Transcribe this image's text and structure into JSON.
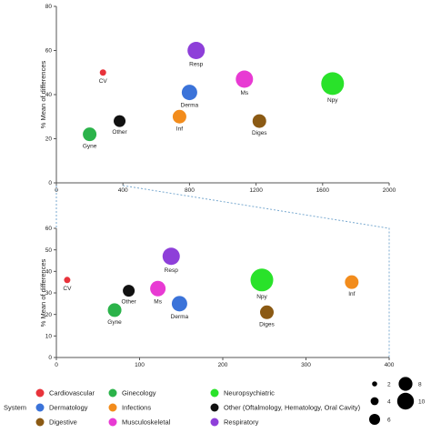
{
  "chart_data": [
    {
      "type": "scatter",
      "ylabel": "% Mean of differences",
      "xlim": [
        0,
        2000
      ],
      "ylim": [
        0,
        80
      ],
      "xticks": [
        "0",
        "400",
        "800",
        "1200",
        "1600",
        "2000"
      ],
      "yticks": [
        "0",
        "20",
        "40",
        "60",
        "80"
      ],
      "grid": false,
      "points": [
        {
          "label": "CV",
          "system": "Cardiovascular",
          "x": 280,
          "y": 50,
          "size": 1
        },
        {
          "label": "Gyne",
          "system": "Ginecology",
          "x": 200,
          "y": 22,
          "size": 5
        },
        {
          "label": "Other",
          "system": "Other",
          "x": 380,
          "y": 28,
          "size": 4
        },
        {
          "label": "Derma",
          "system": "Dermatology",
          "x": 800,
          "y": 41,
          "size": 6
        },
        {
          "label": "Inf",
          "system": "Infections",
          "x": 740,
          "y": 30,
          "size": 5
        },
        {
          "label": "Resp",
          "system": "Respiratory",
          "x": 840,
          "y": 60,
          "size": 7
        },
        {
          "label": "Ms",
          "system": "Musculoskeletal",
          "x": 1130,
          "y": 47,
          "size": 7
        },
        {
          "label": "Diges",
          "system": "Digestive",
          "x": 1220,
          "y": 28,
          "size": 5
        },
        {
          "label": "Npy",
          "system": "Neuropsychiatric",
          "x": 1660,
          "y": 45,
          "size": 10
        }
      ]
    },
    {
      "type": "scatter",
      "ylabel": "% Mean of differences",
      "xlim": [
        0,
        400
      ],
      "ylim": [
        0,
        60
      ],
      "xticks": [
        "0",
        "100",
        "200",
        "300",
        "400"
      ],
      "yticks": [
        "0",
        "10",
        "20",
        "30",
        "40",
        "50",
        "60"
      ],
      "grid": false,
      "points": [
        {
          "label": "CV",
          "system": "Cardiovascular",
          "x": 13,
          "y": 36,
          "size": 1
        },
        {
          "label": "Gyne",
          "system": "Ginecology",
          "x": 70,
          "y": 22,
          "size": 5
        },
        {
          "label": "Other",
          "system": "Other",
          "x": 87,
          "y": 31,
          "size": 4
        },
        {
          "label": "Ms",
          "system": "Musculoskeletal",
          "x": 122,
          "y": 32,
          "size": 6
        },
        {
          "label": "Resp",
          "system": "Respiratory",
          "x": 138,
          "y": 47,
          "size": 7
        },
        {
          "label": "Derma",
          "system": "Dermatology",
          "x": 148,
          "y": 25,
          "size": 6
        },
        {
          "label": "Npy",
          "system": "Neuropsychiatric",
          "x": 247,
          "y": 36,
          "size": 10
        },
        {
          "label": "Diges",
          "system": "Digestive",
          "x": 253,
          "y": 21,
          "size": 5
        },
        {
          "label": "Inf",
          "system": "Infections",
          "x": 355,
          "y": 35,
          "size": 5
        }
      ]
    }
  ],
  "legend": {
    "title": "System",
    "entries": [
      {
        "system": "Cardiovascular",
        "label": "Cardiovascular",
        "color": "#e8333b"
      },
      {
        "system": "Ginecology",
        "label": "Ginecology",
        "color": "#2bb34a"
      },
      {
        "system": "Neuropsychiatric",
        "label": "Neuropsychiatric",
        "color": "#29e22a"
      },
      {
        "system": "Dermatology",
        "label": "Dermatology",
        "color": "#3b73d9"
      },
      {
        "system": "Infections",
        "label": "Infections",
        "color": "#f28c1c"
      },
      {
        "system": "Other",
        "label": "Other (Oftalmology, Hematology, Oral Cavity)",
        "color": "#111111"
      },
      {
        "system": "Digestive",
        "label": "Digestive",
        "color": "#8b5a14"
      },
      {
        "system": "Musculoskeletal",
        "label": "Musculoskeletal",
        "color": "#e83ad3"
      },
      {
        "system": "Respiratory",
        "label": "Respiratory",
        "color": "#8e3fd9"
      }
    ],
    "size_legend": [
      {
        "value": 2,
        "label": "2"
      },
      {
        "value": 4,
        "label": "4"
      },
      {
        "value": 6,
        "label": "6"
      },
      {
        "value": 8,
        "label": "8"
      },
      {
        "value": 10,
        "label": "10"
      }
    ]
  }
}
